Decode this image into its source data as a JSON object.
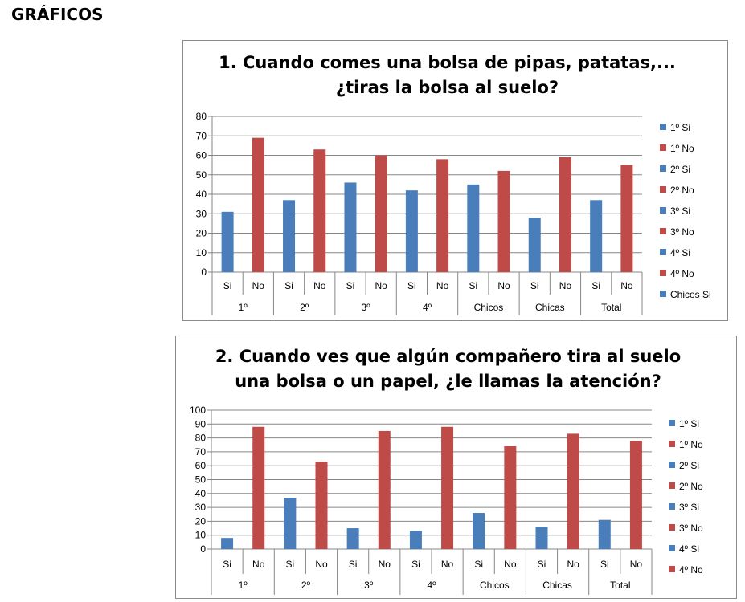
{
  "page": {
    "heading": "GRÁFICOS"
  },
  "colors": {
    "si": "#4a7ebb",
    "no": "#be4b48",
    "grid": "#878787",
    "axis": "#878787"
  },
  "chart_data": [
    {
      "type": "bar",
      "title_lines": [
        "1. Cuando comes una bolsa de pipas, patatas,...",
        "¿tiras la bolsa al suelo?"
      ],
      "groups": [
        "1º",
        "2º",
        "3º",
        "4º",
        "Chicos",
        "Chicas",
        "Total"
      ],
      "subcategories": [
        "Si",
        "No"
      ],
      "series": [
        {
          "name": "Si",
          "values": [
            31,
            37,
            46,
            42,
            45,
            28,
            37
          ]
        },
        {
          "name": "No",
          "values": [
            69,
            63,
            60,
            58,
            52,
            59,
            55
          ]
        }
      ],
      "ylim": [
        0,
        80
      ],
      "yticks": [
        0,
        10,
        20,
        30,
        40,
        50,
        60,
        70,
        80
      ],
      "grid": true,
      "legend": [
        "1º Si",
        "1º No",
        "2º Si",
        "2º No",
        "3º Si",
        "3º No",
        "4º Si",
        "4º No",
        "Chicos Si"
      ],
      "legend_position": "right"
    },
    {
      "type": "bar",
      "title_lines": [
        "2. Cuando ves que algún compañero tira al suelo",
        "una bolsa o un papel, ¿le llamas la atención?"
      ],
      "groups": [
        "1º",
        "2º",
        "3º",
        "4º",
        "Chicos",
        "Chicas",
        "Total"
      ],
      "subcategories": [
        "Si",
        "No"
      ],
      "series": [
        {
          "name": "Si",
          "values": [
            8,
            37,
            15,
            13,
            26,
            16,
            21
          ]
        },
        {
          "name": "No",
          "values": [
            88,
            63,
            85,
            88,
            74,
            83,
            78
          ]
        }
      ],
      "ylim": [
        0,
        100
      ],
      "yticks": [
        0,
        10,
        20,
        30,
        40,
        50,
        60,
        70,
        80,
        90,
        100
      ],
      "grid": true,
      "legend": [
        "1º Si",
        "1º No",
        "2º Si",
        "2º No",
        "3º Si",
        "3º No",
        "4º Si",
        "4º No"
      ],
      "legend_position": "right"
    }
  ]
}
